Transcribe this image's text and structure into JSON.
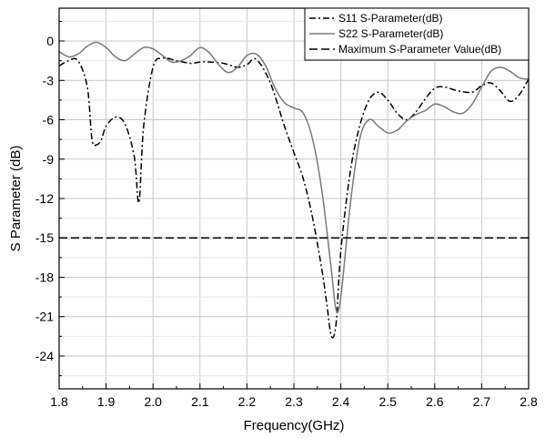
{
  "chart_data": {
    "type": "line",
    "title": "",
    "xlabel": "Frequency(GHz)",
    "ylabel": "S Parameter (dB)",
    "xlim": [
      1.8,
      2.8
    ],
    "ylim": [
      -26.5,
      2.5
    ],
    "xticks": [
      1.8,
      1.9,
      2.0,
      2.1,
      2.2,
      2.3,
      2.4,
      2.5,
      2.6,
      2.7,
      2.8
    ],
    "yticks": [
      0,
      -3,
      -6,
      -9,
      -12,
      -15,
      -18,
      -21,
      -24
    ],
    "xtick_labels": [
      "1.8",
      "1.9",
      "2.0",
      "2.1",
      "2.2",
      "2.3",
      "2.4",
      "2.5",
      "2.6",
      "2.7",
      "2.8"
    ],
    "ytick_labels": [
      "0",
      "-3",
      "-6",
      "-9",
      "-12",
      "-15",
      "-18",
      "-21",
      "-24"
    ],
    "grid": true,
    "legend_position": "top-right",
    "series": [
      {
        "name": "S11 S-Parameter(dB)",
        "style": "dash-dot",
        "color": "#000000",
        "x": [
          1.8,
          1.82,
          1.84,
          1.86,
          1.87,
          1.88,
          1.89,
          1.9,
          1.92,
          1.94,
          1.96,
          1.97,
          1.98,
          2.0,
          2.02,
          2.05,
          2.08,
          2.1,
          2.12,
          2.15,
          2.18,
          2.2,
          2.22,
          2.25,
          2.28,
          2.3,
          2.32,
          2.34,
          2.36,
          2.37,
          2.38,
          2.39,
          2.4,
          2.42,
          2.44,
          2.46,
          2.48,
          2.5,
          2.52,
          2.54,
          2.56,
          2.58,
          2.6,
          2.62,
          2.65,
          2.68,
          2.7,
          2.72,
          2.74,
          2.76,
          2.78,
          2.8
        ],
        "y": [
          -1.9,
          -1.5,
          -1.5,
          -3.5,
          -7.5,
          -7.9,
          -7.5,
          -6.5,
          -5.8,
          -6.3,
          -8.8,
          -12.3,
          -6.5,
          -2.0,
          -1.3,
          -1.5,
          -1.7,
          -1.6,
          -1.6,
          -1.7,
          -2.0,
          -1.8,
          -1.4,
          -3.2,
          -6.5,
          -8.5,
          -10.5,
          -13.5,
          -17.5,
          -20.0,
          -22.5,
          -21.5,
          -16.0,
          -10.0,
          -6.5,
          -4.5,
          -3.9,
          -4.5,
          -5.5,
          -6.0,
          -5.4,
          -4.4,
          -3.6,
          -3.5,
          -3.8,
          -3.9,
          -3.4,
          -3.2,
          -3.8,
          -4.6,
          -4.1,
          -2.9
        ]
      },
      {
        "name": "S22 S-Parameter(dB)",
        "style": "solid",
        "color": "#7a7a7a",
        "x": [
          1.8,
          1.82,
          1.84,
          1.86,
          1.88,
          1.9,
          1.92,
          1.94,
          1.96,
          1.98,
          2.0,
          2.02,
          2.04,
          2.06,
          2.08,
          2.1,
          2.12,
          2.14,
          2.16,
          2.18,
          2.2,
          2.22,
          2.24,
          2.26,
          2.28,
          2.3,
          2.32,
          2.34,
          2.36,
          2.38,
          2.39,
          2.4,
          2.42,
          2.44,
          2.46,
          2.48,
          2.5,
          2.52,
          2.54,
          2.56,
          2.58,
          2.6,
          2.62,
          2.64,
          2.66,
          2.68,
          2.7,
          2.72,
          2.74,
          2.76,
          2.78,
          2.8
        ],
        "y": [
          -0.8,
          -1.2,
          -1.0,
          -0.4,
          -0.1,
          -0.5,
          -1.2,
          -1.5,
          -1.0,
          -0.5,
          -0.6,
          -1.1,
          -1.6,
          -1.5,
          -1.1,
          -0.5,
          -0.9,
          -1.8,
          -2.4,
          -2.0,
          -1.1,
          -1.0,
          -1.9,
          -3.6,
          -4.7,
          -5.1,
          -5.5,
          -7.5,
          -11.5,
          -17.5,
          -20.5,
          -19.5,
          -12.5,
          -7.5,
          -6.0,
          -6.5,
          -7.0,
          -6.8,
          -6.1,
          -5.6,
          -5.3,
          -4.8,
          -5.0,
          -5.4,
          -5.5,
          -4.8,
          -3.5,
          -2.3,
          -2.0,
          -2.3,
          -2.8,
          -2.9
        ]
      },
      {
        "name": "Maximum S-Parameter Value(dB)",
        "style": "dashed",
        "color": "#000000",
        "x": [
          1.8,
          2.8
        ],
        "y": [
          -15,
          -15
        ]
      }
    ]
  }
}
